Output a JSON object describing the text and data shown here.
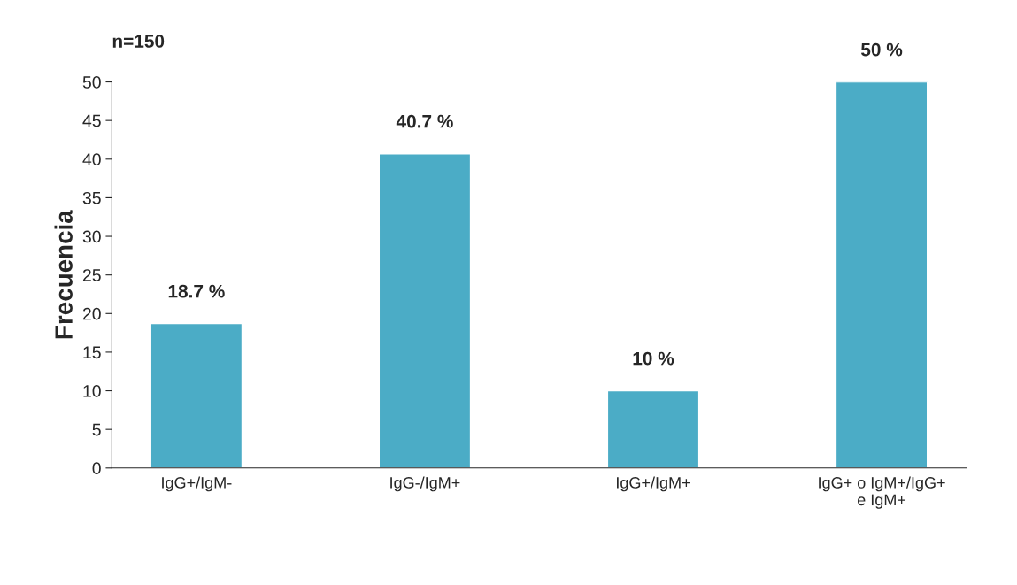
{
  "chart_data": {
    "type": "bar",
    "title": "n=150",
    "ylabel": "Frecuencia",
    "categories": [
      "IgG+/IgM-",
      "IgG-/IgM+",
      "IgG+/IgM+",
      "IgG+ o IgM+/IgG+\ne IgM+"
    ],
    "values": [
      18.7,
      40.7,
      10,
      50
    ],
    "value_labels": [
      "18.7 %",
      "40.7 %",
      "10 %",
      "50 %"
    ],
    "color": "#4bacc6",
    "ylim": [
      0,
      50
    ],
    "yticks": [
      0,
      5,
      10,
      15,
      20,
      25,
      30,
      35,
      40,
      45,
      50
    ],
    "grid": false,
    "legend": false
  }
}
